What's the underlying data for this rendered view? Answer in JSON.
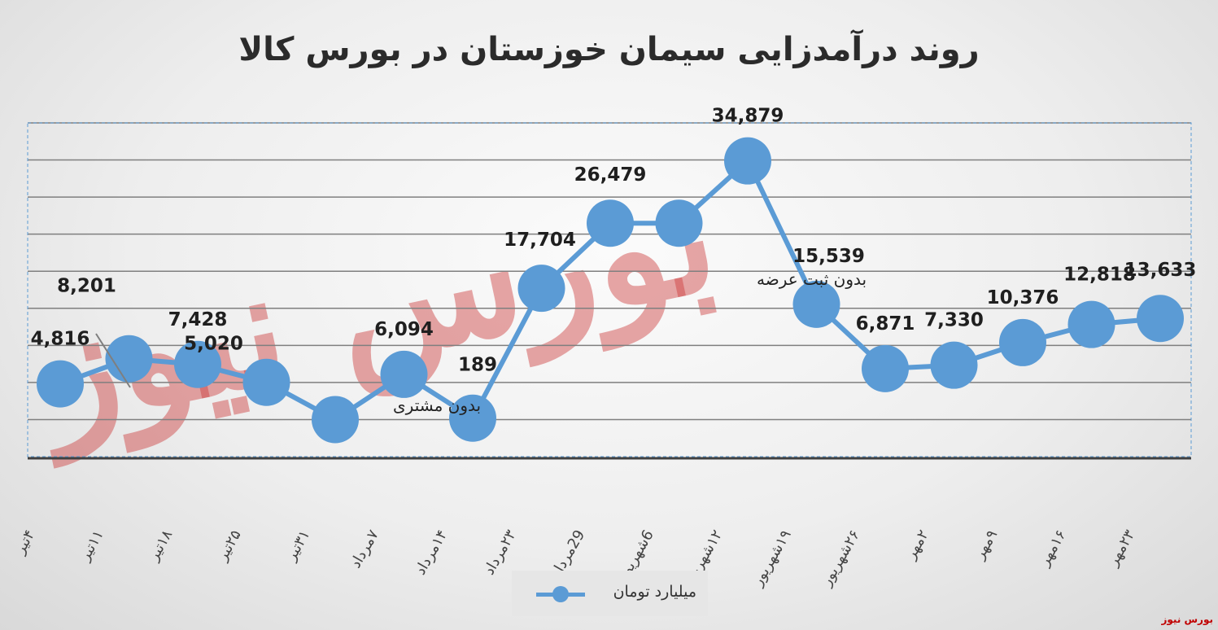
{
  "chart_data": {
    "type": "line",
    "title": "روند درآمدزایی سیمان خوزستان در بورس کالا",
    "categories": [
      "۴تیر",
      "۱۱تیر",
      "۱۸تیر",
      "۲۵تیر",
      "۳۱تیر",
      "۷مرداد",
      "۱۴مرداد",
      "۲۳مرداد",
      "29مرداد",
      "6شهریور",
      "۱۲شهریور",
      "۱۹شهریور",
      "۲۶شهریور",
      "۲مهر",
      "۹مهر",
      "۱۶مهر",
      "۲۳مهر"
    ],
    "series": [
      {
        "name": "میلیارد تومان",
        "values": [
          4816,
          8201,
          7428,
          5020,
          0,
          6094,
          189,
          17704,
          26479,
          26479,
          34879,
          15539,
          6871,
          7330,
          10376,
          12818,
          13633
        ],
        "labels": [
          "4,816",
          "8,201",
          "7,428",
          "5,020",
          "",
          "6,094",
          "189",
          "17,704",
          "26,479",
          "",
          "34,879",
          "15,539",
          "6,871",
          "7,330",
          "10,376",
          "12,818",
          "13,633"
        ]
      }
    ],
    "annotations": [
      "بدون مشتری",
      "بدون ثبت عرضه"
    ],
    "ylim": [
      -5000,
      40000
    ],
    "grid": true,
    "legend_position": "bottom",
    "color": "#5b9bd5"
  },
  "watermark": "بورس نیوز",
  "watermark_big": "بورس نیوز"
}
